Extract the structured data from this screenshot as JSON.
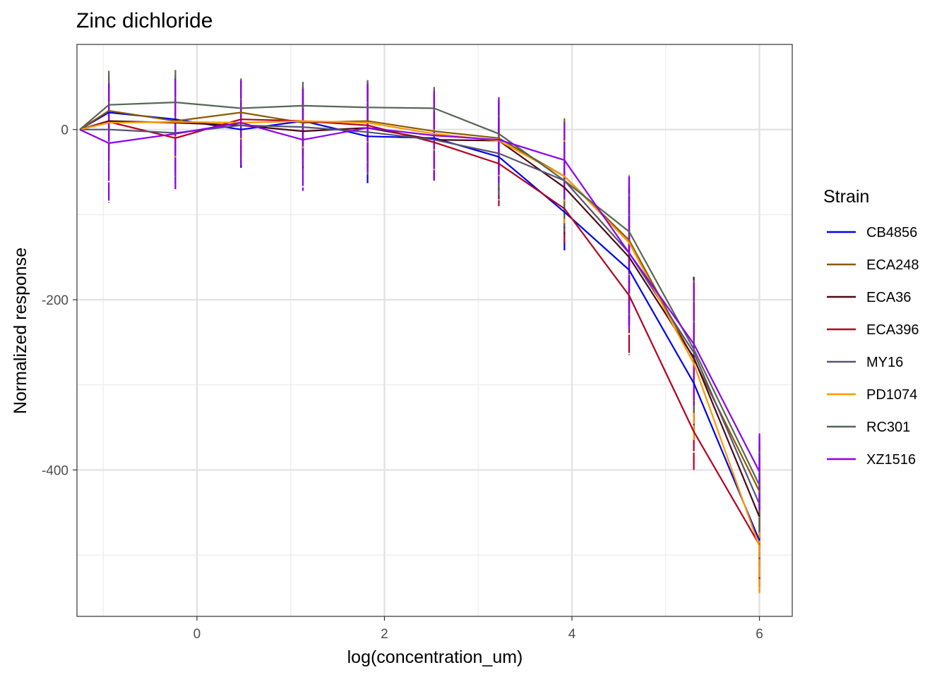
{
  "chart_data": {
    "type": "line",
    "title": "Zinc dichloride",
    "xlabel": "log(concentration_um)",
    "ylabel": "Normalized response",
    "xlim": [
      -1.28,
      6.35
    ],
    "ylim": [
      -572,
      100
    ],
    "x_ticks": [
      0,
      2,
      4,
      6
    ],
    "x_tick_labels": [
      "0",
      "2",
      "4",
      "6"
    ],
    "y_ticks": [
      0,
      -200,
      -400
    ],
    "y_tick_labels": [
      "0",
      "-200",
      "-400"
    ],
    "x_minor_ticks": [
      -1,
      1,
      3,
      5
    ],
    "y_minor_ticks": [
      -100,
      -300,
      -500
    ],
    "grid": true,
    "legend": {
      "title": "Strain",
      "position": "right"
    },
    "x": [
      -1.25,
      -0.94,
      -0.23,
      0.47,
      1.13,
      1.82,
      2.53,
      3.22,
      3.92,
      4.61,
      5.3,
      6.0
    ],
    "series": [
      {
        "name": "CB4856",
        "color": "#0000ee",
        "values": [
          0,
          20,
          12,
          0,
          10,
          -8,
          -10,
          -32,
          -97,
          -165,
          -298,
          -483
        ],
        "err": [
          0,
          35,
          45,
          45,
          40,
          55,
          50,
          50,
          45,
          65,
          70,
          60
        ]
      },
      {
        "name": "ECA248",
        "color": "#8b5a00",
        "values": [
          0,
          22,
          10,
          20,
          8,
          10,
          -2,
          -10,
          -55,
          -130,
          -270,
          -425
        ],
        "err": [
          0,
          42,
          55,
          40,
          42,
          48,
          50,
          45,
          68,
          75,
          90,
          65
        ]
      },
      {
        "name": "ECA36",
        "color": "#4a0a14",
        "values": [
          0,
          10,
          8,
          5,
          -2,
          2,
          -12,
          -13,
          -68,
          -150,
          -268,
          -455
        ],
        "err": [
          0,
          45,
          55,
          45,
          45,
          48,
          45,
          45,
          55,
          80,
          95,
          75
        ]
      },
      {
        "name": "ECA396",
        "color": "#b2001f",
        "values": [
          0,
          9,
          -10,
          12,
          10,
          5,
          -15,
          -40,
          -93,
          -195,
          -355,
          -488
        ],
        "err": [
          0,
          35,
          60,
          45,
          40,
          50,
          45,
          50,
          40,
          70,
          45,
          50
        ]
      },
      {
        "name": "MY16",
        "color": "#555574",
        "values": [
          0,
          0,
          -4,
          5,
          3,
          -3,
          -12,
          -28,
          -60,
          -145,
          -262,
          -440
        ],
        "err": [
          0,
          40,
          55,
          45,
          45,
          50,
          45,
          50,
          60,
          80,
          85,
          70
        ]
      },
      {
        "name": "PD1074",
        "color": "#ff9900",
        "values": [
          0,
          8,
          9,
          8,
          10,
          8,
          -5,
          -13,
          -55,
          -133,
          -275,
          -490
        ],
        "err": [
          0,
          40,
          55,
          40,
          40,
          45,
          45,
          45,
          55,
          80,
          90,
          55
        ]
      },
      {
        "name": "RC301",
        "color": "#556655",
        "values": [
          0,
          29,
          32,
          25,
          28,
          26,
          25,
          -5,
          -60,
          -120,
          -258,
          -418
        ],
        "err": [
          0,
          40,
          38,
          30,
          28,
          32,
          25,
          40,
          45,
          50,
          75,
          55
        ]
      },
      {
        "name": "XZ1516",
        "color": "#8b00ee",
        "values": [
          0,
          -16,
          -5,
          8,
          -12,
          2,
          -7,
          -12,
          -36,
          -145,
          -252,
          -402
        ],
        "err": [
          0,
          70,
          65,
          50,
          60,
          52,
          52,
          50,
          45,
          90,
          72,
          45
        ]
      }
    ]
  }
}
